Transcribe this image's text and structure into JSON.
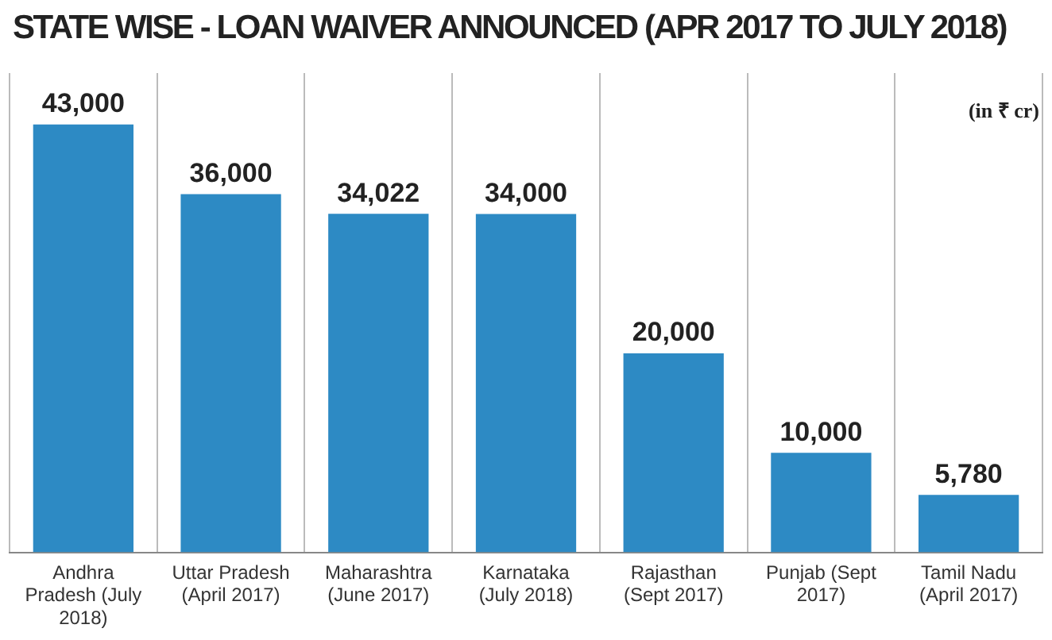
{
  "chart_data": {
    "type": "bar",
    "title": "STATE WISE - LOAN WAIVER ANNOUNCED (APR 2017 TO JULY 2018)",
    "categories": [
      "Andhra Pradesh (July 2018)",
      "Uttar Pradesh (April 2017)",
      "Maharashtra (June 2017)",
      "Karnataka (July 2018)",
      "Rajasthan (Sept 2017)",
      "Punjab (Sept 2017)",
      "Tamil Nadu (April 2017)"
    ],
    "values": [
      43000,
      36000,
      34022,
      34000,
      20000,
      10000,
      5780
    ],
    "value_labels": [
      "43,000",
      "36,000",
      "34,022",
      "34,000",
      "20,000",
      "10,000",
      "5,780"
    ],
    "color": "#2d8ac4",
    "grid": "x",
    "legend": false,
    "annotations": [
      "(in ₹ cr)"
    ]
  }
}
